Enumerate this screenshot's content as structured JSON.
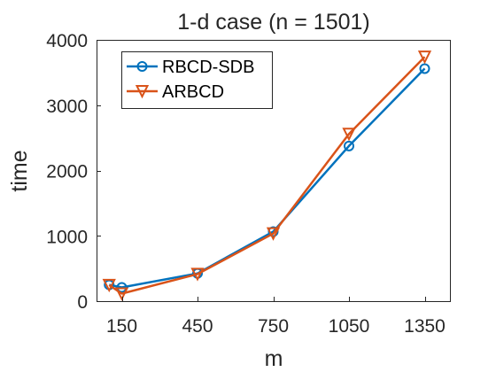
{
  "chart_data": {
    "type": "line",
    "title": "1-d case (n = 1501)",
    "xlabel": "m",
    "ylabel": "time",
    "xlim": [
      50,
      1450
    ],
    "ylim": [
      0,
      4000
    ],
    "xticks": [
      150,
      450,
      750,
      1050,
      1350
    ],
    "yticks": [
      0,
      1000,
      2000,
      3000,
      4000
    ],
    "grid": false,
    "legend_position": "top-left",
    "series": [
      {
        "name": "RBCD-SDB",
        "color": "#0072BD",
        "marker": "circle",
        "x": [
          100,
          150,
          450,
          750,
          1050,
          1350
        ],
        "y": [
          250,
          210,
          425,
          1065,
          2375,
          3560
        ]
      },
      {
        "name": "ARBCD",
        "color": "#D95319",
        "marker": "triangle-down",
        "x": [
          100,
          150,
          450,
          750,
          1050,
          1350
        ],
        "y": [
          245,
          115,
          415,
          1035,
          2560,
          3740
        ]
      }
    ]
  }
}
